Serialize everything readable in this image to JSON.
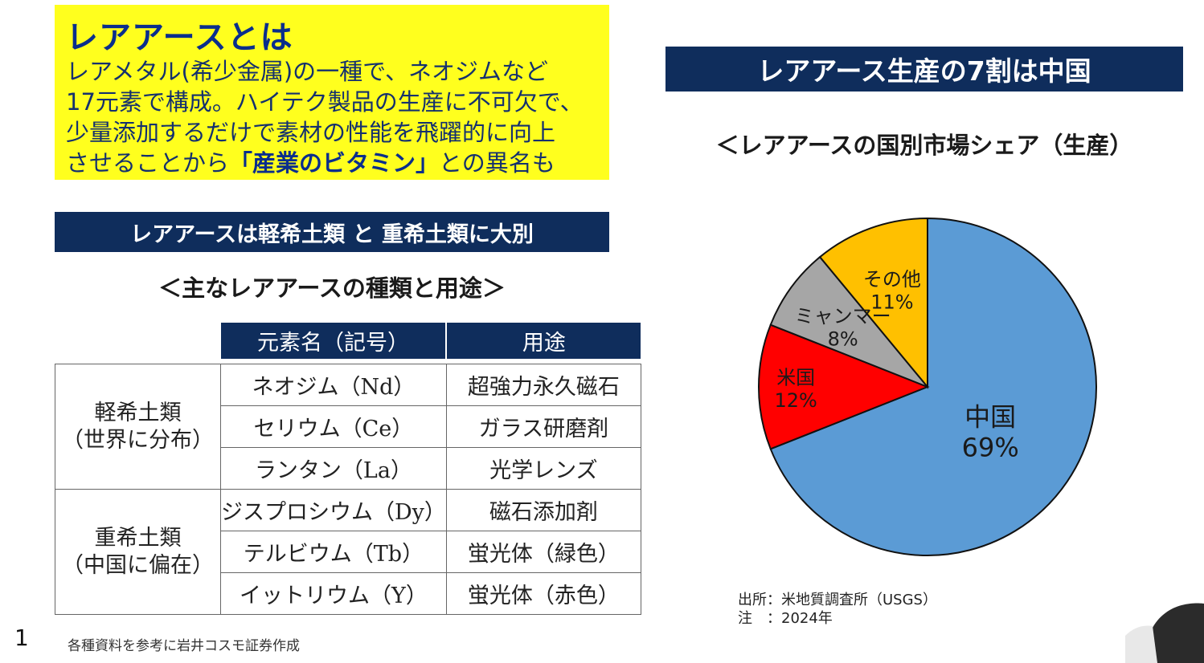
{
  "definition": {
    "title": "レアアースとは",
    "lines": [
      "レアメタル(希少金属)の一種で、ネオジムなど",
      "17元素で構成。ハイテク製品の生産に不可欠で、",
      "少量添加するだけで素材の性能を飛躍的に向上"
    ],
    "last_line_prefix": "させることから",
    "last_line_highlight": "「産業のビタミン」",
    "last_line_suffix": "との異名も"
  },
  "left_banner": "レアアースは軽希土類 と 重希土類に大別",
  "table": {
    "heading": "＜主なレアアースの種類と用途＞",
    "col_element": "元素名（記号）",
    "col_use": "用途",
    "groups": [
      {
        "name": "軽希土類",
        "note": "（世界に分布）",
        "rows": [
          {
            "element": "ネオジム（Nd）",
            "use": "超強力永久磁石"
          },
          {
            "element": "セリウム（Ce）",
            "use": "ガラス研磨剤"
          },
          {
            "element": "ランタン（La）",
            "use": "光学レンズ"
          }
        ]
      },
      {
        "name": "重希土類",
        "note": "（中国に偏在）",
        "rows": [
          {
            "element": "ジスプロシウム（Dy）",
            "use": "磁石添加剤"
          },
          {
            "element": "テルビウム（Tb）",
            "use": "蛍光体（緑色）"
          },
          {
            "element": "イットリウム（Y）",
            "use": "蛍光体（赤色）"
          }
        ]
      }
    ]
  },
  "page_number": "1",
  "footnote": "各種資料を参考に岩井コスモ証券作成",
  "right_banner": "レアアース生産の7割は中国",
  "chart_data": {
    "type": "pie",
    "title": "＜レアアースの国別市場シェア（生産）",
    "slices": [
      {
        "label": "中国",
        "value": 69,
        "value_label": "69%",
        "color": "#5b9bd5"
      },
      {
        "label": "米国",
        "value": 12,
        "value_label": "12%",
        "color": "#ff0000"
      },
      {
        "label": "ミャンマー",
        "value": 8,
        "value_label": "8%",
        "color": "#a6a6a6"
      },
      {
        "label": "その他",
        "value": 11,
        "value_label": "11%",
        "color": "#ffc000"
      }
    ],
    "start": "12 o'clock, clockwise"
  },
  "source": {
    "line1": "出所：米地質調査所（USGS）",
    "line2": "注　：2024年"
  }
}
